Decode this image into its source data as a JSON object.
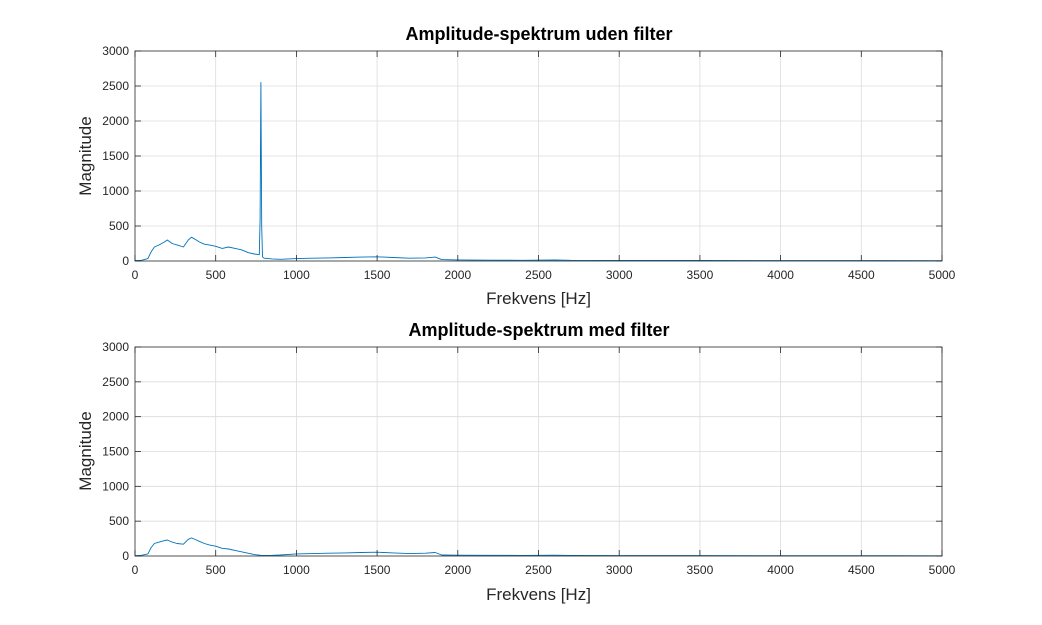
{
  "chart_data": [
    {
      "type": "line",
      "title": "Amplitude-spektrum uden filter",
      "xlabel": "Frekvens [Hz]",
      "ylabel": "Magnitude",
      "xlim": [
        0,
        5000
      ],
      "ylim": [
        0,
        3000
      ],
      "xticks": [
        0,
        500,
        1000,
        1500,
        2000,
        2500,
        3000,
        3500,
        4000,
        4500,
        5000
      ],
      "yticks": [
        0,
        500,
        1000,
        1500,
        2000,
        2500,
        3000
      ],
      "grid": true,
      "color": "#0072bd",
      "series": [
        {
          "x": [
            0,
            40,
            80,
            100,
            120,
            150,
            180,
            200,
            230,
            260,
            300,
            330,
            350,
            380,
            400,
            430,
            460,
            500,
            540,
            580,
            620,
            660,
            700,
            740,
            770,
            775,
            780,
            785,
            790,
            800,
            850,
            900,
            1000,
            1100,
            1200,
            1300,
            1400,
            1500,
            1600,
            1700,
            1800,
            1860,
            1900,
            2000,
            2200,
            2400,
            2600,
            2700,
            3000,
            3500,
            4000,
            4500,
            5000
          ],
          "y": [
            5,
            10,
            35,
            130,
            200,
            230,
            270,
            300,
            250,
            230,
            200,
            300,
            340,
            300,
            270,
            240,
            230,
            210,
            180,
            200,
            180,
            160,
            120,
            100,
            90,
            600,
            2550,
            500,
            60,
            40,
            30,
            25,
            35,
            40,
            45,
            50,
            55,
            60,
            50,
            40,
            45,
            55,
            20,
            15,
            12,
            10,
            15,
            10,
            8,
            8,
            6,
            5,
            4
          ]
        }
      ]
    },
    {
      "type": "line",
      "title": "Amplitude-spektrum med filter",
      "xlabel": "Frekvens [Hz]",
      "ylabel": "Magnitude",
      "xlim": [
        0,
        5000
      ],
      "ylim": [
        0,
        3000
      ],
      "xticks": [
        0,
        500,
        1000,
        1500,
        2000,
        2500,
        3000,
        3500,
        4000,
        4500,
        5000
      ],
      "yticks": [
        0,
        500,
        1000,
        1500,
        2000,
        2500,
        3000
      ],
      "grid": true,
      "color": "#0072bd",
      "series": [
        {
          "x": [
            0,
            40,
            80,
            100,
            120,
            150,
            180,
            200,
            230,
            260,
            300,
            330,
            350,
            380,
            400,
            430,
            460,
            500,
            540,
            580,
            620,
            660,
            700,
            740,
            780,
            800,
            850,
            900,
            1000,
            1100,
            1200,
            1300,
            1400,
            1500,
            1600,
            1700,
            1800,
            1860,
            1900,
            2000,
            2200,
            2400,
            2600,
            2700,
            3000,
            3500,
            4000,
            4500,
            5000
          ],
          "y": [
            5,
            10,
            30,
            120,
            180,
            200,
            220,
            230,
            200,
            180,
            170,
            240,
            260,
            230,
            210,
            180,
            160,
            140,
            110,
            100,
            80,
            60,
            40,
            20,
            10,
            8,
            10,
            15,
            30,
            35,
            40,
            45,
            50,
            55,
            45,
            35,
            40,
            50,
            15,
            12,
            10,
            8,
            12,
            8,
            6,
            6,
            5,
            4,
            3
          ]
        }
      ]
    }
  ]
}
